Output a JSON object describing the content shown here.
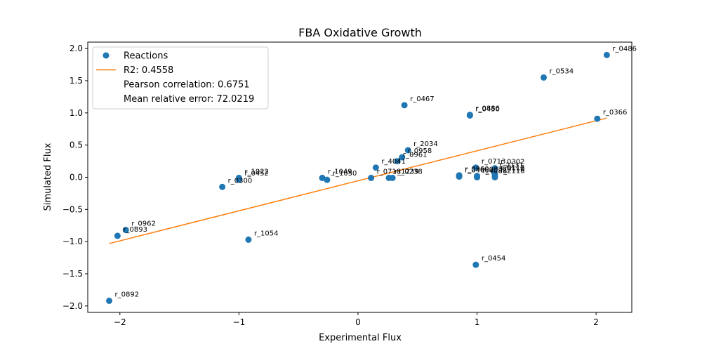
{
  "chart_data": {
    "type": "scatter",
    "title": "FBA Oxidative Growth",
    "xlabel": "Experimental Flux",
    "ylabel": "Simulated Flux",
    "xlim": [
      -2.27,
      2.3
    ],
    "ylim": [
      -2.1,
      2.1
    ],
    "xticks": [
      -2,
      -1,
      0,
      1,
      2
    ],
    "xtick_labels": [
      "−2",
      "−1",
      "0",
      "1",
      "2"
    ],
    "yticks": [
      -2.0,
      -1.5,
      -1.0,
      -0.5,
      0.0,
      0.5,
      1.0,
      1.5,
      2.0
    ],
    "ytick_labels": [
      "−2.0",
      "−1.5",
      "−1.0",
      "−0.5",
      "0.0",
      "0.5",
      "1.0",
      "1.5",
      "2.0"
    ],
    "grid": false,
    "legend_position": "top-left",
    "colors": {
      "points": "#1f77b4",
      "fit_line": "#ff7f0e"
    },
    "series": [
      {
        "name": "Reactions",
        "points": [
          {
            "label": "r_0486",
            "x": 2.09,
            "y": 1.9
          },
          {
            "label": "r_0534",
            "x": 1.56,
            "y": 1.55
          },
          {
            "label": "r_0366",
            "x": 2.01,
            "y": 0.91
          },
          {
            "label": "r_0467",
            "x": 0.39,
            "y": 1.12
          },
          {
            "label": "r_0886",
            "x": 0.94,
            "y": 0.97
          },
          {
            "label": "r_0450",
            "x": 0.94,
            "y": 0.96
          },
          {
            "label": "r_2034",
            "x": 0.42,
            "y": 0.42
          },
          {
            "label": "r_0958",
            "x": 0.37,
            "y": 0.31
          },
          {
            "label": "r_0961",
            "x": 0.33,
            "y": 0.25
          },
          {
            "label": "r_4041",
            "x": 0.15,
            "y": 0.15
          },
          {
            "label": "r_0713",
            "x": 0.99,
            "y": 0.15
          },
          {
            "label": "r_0302",
            "x": 1.15,
            "y": 0.14
          },
          {
            "label": "r_2131",
            "x": 1.14,
            "y": 0.09
          },
          {
            "label": "r_0112",
            "x": 1.15,
            "y": 0.05
          },
          {
            "label": "r_0110",
            "x": 1.15,
            "y": 0.03
          },
          {
            "label": "r_2116",
            "x": 1.15,
            "y": 0.0
          },
          {
            "label": "r_0960",
            "x": 0.85,
            "y": 0.03
          },
          {
            "label": "r_0832",
            "x": 1.0,
            "y": 0.02
          },
          {
            "label": "r_0466",
            "x": 0.85,
            "y": 0.01
          },
          {
            "label": "r_4088",
            "x": 1.0,
            "y": 0.0
          },
          {
            "label": "r_0718",
            "x": 0.11,
            "y": -0.01
          },
          {
            "label": "r_1239",
            "x": 0.26,
            "y": -0.01
          },
          {
            "label": "r_0238",
            "x": 0.29,
            "y": -0.01
          },
          {
            "label": "r_1049",
            "x": -0.3,
            "y": -0.01
          },
          {
            "label": "r_1050",
            "x": -0.26,
            "y": -0.04
          },
          {
            "label": "r_1022",
            "x": -1.0,
            "y": -0.01
          },
          {
            "label": "r_0452",
            "x": -1.0,
            "y": -0.04
          },
          {
            "label": "r_0300",
            "x": -1.14,
            "y": -0.15
          },
          {
            "label": "r_0962",
            "x": -1.95,
            "y": -0.82
          },
          {
            "label": "r_0893",
            "x": -2.02,
            "y": -0.91
          },
          {
            "label": "r_1054",
            "x": -0.92,
            "y": -0.97
          },
          {
            "label": "r_0454",
            "x": 0.99,
            "y": -1.36
          },
          {
            "label": "r_0892",
            "x": -2.09,
            "y": -1.92
          }
        ]
      }
    ],
    "fit_line": {
      "x": [
        -2.09,
        2.09
      ],
      "y": [
        -1.03,
        0.92
      ]
    },
    "legend": [
      {
        "marker": "circle",
        "text": "Reactions"
      },
      {
        "marker": "line",
        "text": "R2: 0.4558"
      },
      {
        "marker": "none",
        "text": "Pearson correlation: 0.6751"
      },
      {
        "marker": "none",
        "text": "Mean relative error: 72.0219"
      }
    ]
  }
}
